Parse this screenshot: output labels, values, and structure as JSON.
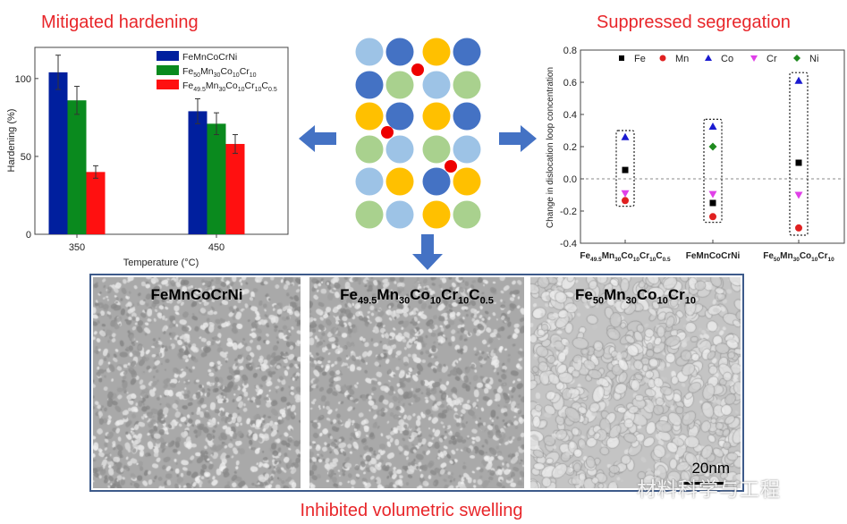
{
  "titles": {
    "left": "Mitigated hardening",
    "right": "Suppressed segregation",
    "bottom": "Inhibited volumetric swelling"
  },
  "colors": {
    "title_red": "#e8262a",
    "arrow_blue": "#4472c4",
    "light_blue": "#9dc3e6",
    "dark_blue": "#4472c4",
    "yellow": "#ffc000",
    "green": "#a9d18e",
    "interstitial_red": "#ee0000"
  },
  "lattice": {
    "rows": [
      [
        "light_blue",
        "dark_blue",
        "yellow",
        "dark_blue"
      ],
      [
        "dark_blue",
        "green",
        "light_blue",
        "green"
      ],
      [
        "yellow",
        "dark_blue",
        "yellow",
        "dark_blue"
      ],
      [
        "green",
        "light_blue",
        "green",
        "light_blue"
      ],
      [
        "light_blue",
        "yellow",
        "dark_blue",
        "yellow"
      ],
      [
        "green",
        "light_blue",
        "yellow",
        "green"
      ]
    ],
    "interstitial_count": 3
  },
  "chart_data": [
    {
      "type": "bar",
      "title": "Mitigated hardening",
      "xlabel": "Temperature (°C)",
      "ylabel": "Hardening (%)",
      "categories": [
        "350",
        "450"
      ],
      "yticks": [
        "0",
        "50",
        "100"
      ],
      "ylim": [
        0,
        120
      ],
      "legend_position": "top-right",
      "series": [
        {
          "name": "FeMnCoCrNi",
          "color": "#001f9e",
          "values": [
            104,
            79
          ],
          "errors": [
            11,
            8
          ]
        },
        {
          "name": "Fe50Mn30Co10Cr10",
          "color": "#0a8a1e",
          "values": [
            86,
            71
          ],
          "errors": [
            9,
            7
          ]
        },
        {
          "name": "Fe49.5Mn30Co10Cr10C0.5",
          "color": "#ff1010",
          "values": [
            40,
            58
          ],
          "errors": [
            4,
            6
          ]
        }
      ]
    },
    {
      "type": "scatter",
      "title": "Suppressed segregation",
      "ylabel": "Change in dislocation loop concentration",
      "categories": [
        "Fe49.5Mn30Co10Cr10C0.5",
        "FeMnCoCrNi",
        "Fe50Mn30Co10Cr10"
      ],
      "yticks": [
        "0.8",
        "0.6",
        "0.4",
        "0.2",
        "0.0",
        "-0.2",
        "-0.4"
      ],
      "ylim": [
        -0.4,
        0.8
      ],
      "reference_line": 0.0,
      "legend_position": "top",
      "series": [
        {
          "name": "Fe",
          "marker": "square",
          "color": "#000000",
          "values": [
            0.055,
            -0.15,
            0.1
          ]
        },
        {
          "name": "Mn",
          "marker": "circle",
          "color": "#e02020",
          "values": [
            -0.135,
            -0.235,
            -0.305
          ]
        },
        {
          "name": "Co",
          "marker": "triangle-up",
          "color": "#1a1ad0",
          "values": [
            0.26,
            0.325,
            0.61
          ]
        },
        {
          "name": "Cr",
          "marker": "triangle-down",
          "color": "#e040e8",
          "values": [
            -0.09,
            -0.095,
            -0.1
          ]
        },
        {
          "name": "Ni",
          "marker": "diamond",
          "color": "#1e8a1e",
          "values": [
            null,
            0.2,
            null
          ]
        }
      ],
      "group_ranges": [
        [
          -0.17,
          0.3
        ],
        [
          -0.27,
          0.37
        ],
        [
          -0.35,
          0.66
        ]
      ]
    }
  ],
  "tem_images": [
    {
      "label": "FeMnCoCrNi",
      "texture": "fine"
    },
    {
      "label": "Fe49.5Mn30Co10Cr10C0.5",
      "texture": "fine"
    },
    {
      "label": "Fe50Mn30Co10Cr10",
      "texture": "voids"
    }
  ],
  "scale_bar": "20nm",
  "watermark": "材料科学与工程"
}
